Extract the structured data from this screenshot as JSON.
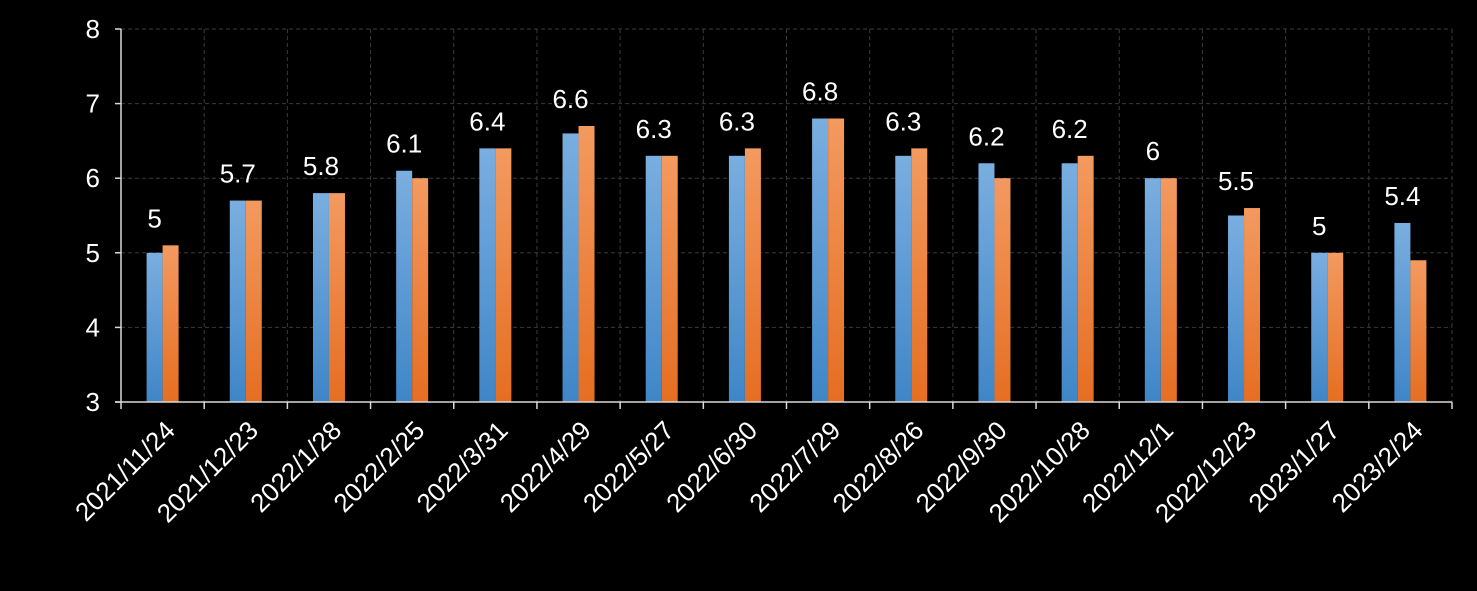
{
  "chart_data": {
    "type": "bar",
    "categories": [
      "2021/11/24",
      "2021/12/23",
      "2022/1/28",
      "2022/2/25",
      "2022/3/31",
      "2022/4/29",
      "2022/5/27",
      "2022/6/30",
      "2022/7/29",
      "2022/8/26",
      "2022/9/30",
      "2022/10/28",
      "2022/12/1",
      "2022/12/23",
      "2023/1/27",
      "2023/2/24"
    ],
    "series": [
      {
        "values": [
          5,
          5.7,
          5.8,
          6.1,
          6.4,
          6.6,
          6.3,
          6.3,
          6.8,
          6.3,
          6.2,
          6.2,
          6,
          5.5,
          5,
          5.4
        ],
        "color": "#5b9bd5",
        "data_labels": [
          "5",
          "5.7",
          "5.8",
          "6.1",
          "6.4",
          "6.6",
          "6.3",
          "6.3",
          "6.8",
          "6.3",
          "6.2",
          "6.2",
          "6",
          "5.5",
          "5",
          "5.4"
        ]
      },
      {
        "values": [
          5.1,
          5.7,
          5.8,
          6.0,
          6.4,
          6.7,
          6.3,
          6.4,
          6.8,
          6.4,
          6.0,
          6.3,
          6.0,
          5.6,
          5.0,
          4.9
        ],
        "color": "#ed7d31"
      }
    ],
    "ylim": [
      3,
      8
    ],
    "yticks": [
      "3",
      "4",
      "5",
      "6",
      "7",
      "8"
    ],
    "grid": true,
    "title": "",
    "xlabel": "",
    "ylabel": ""
  }
}
